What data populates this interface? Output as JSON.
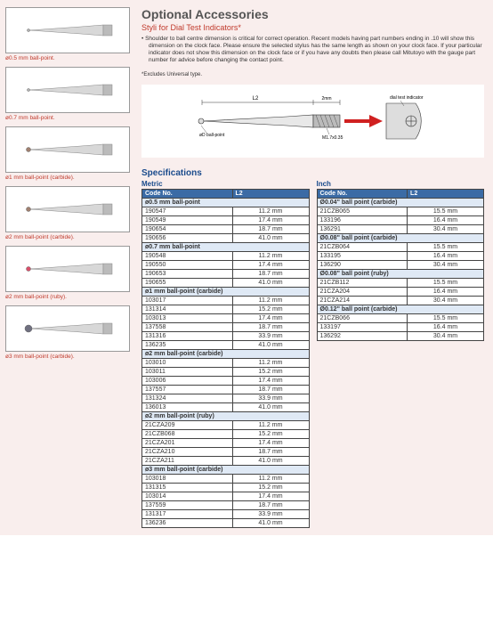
{
  "header": {
    "title": "Optional Accessories",
    "subtitle": "Styli for Dial Test Indicators*",
    "note": "Shoulder to ball centre dimension is critical for correct operation. Recent models having part numbers ending in .10 will show this dimension on the clock face. Please ensure the selected stylus has the same length as shown on your clock face. If your particular indicator does not show this dimension on the clock face or if you have any doubts then please call Mitutoyo with the gauge part number for advice before changing the contact point.",
    "footnote": "*Excludes Universal type."
  },
  "diagram": {
    "labels": {
      "l2": "L2",
      "ball": "øD ball-point",
      "thread": "M1.7x0.35",
      "right": "dial test indicator"
    }
  },
  "thumbnails": [
    {
      "caption": "ø0.5 mm ball-point.",
      "color": "#b0b0b0",
      "tip": "small"
    },
    {
      "caption": "ø0.7 mm ball-point.",
      "color": "#b0b0b0",
      "tip": "small"
    },
    {
      "caption": "ø1 mm ball-point (carbide).",
      "color": "#a08070",
      "tip": "med"
    },
    {
      "caption": "ø2 mm ball-point (carbide).",
      "color": "#a08070",
      "tip": "med"
    },
    {
      "caption": "ø2 mm ball-point (ruby).",
      "color": "#d94f6a",
      "tip": "med"
    },
    {
      "caption": "ø3 mm ball-point (carbide).",
      "color": "#707080",
      "tip": "large"
    }
  ],
  "specs": {
    "title": "Specifications",
    "head_code": "Code No.",
    "head_l2": "L2",
    "metric": {
      "title": "Metric",
      "sections": [
        {
          "title": "ø0.5 mm ball-point",
          "rows": [
            {
              "code": "190547",
              "l2": "11.2 mm"
            },
            {
              "code": "190549",
              "l2": "17.4 mm"
            },
            {
              "code": "190654",
              "l2": "18.7 mm"
            },
            {
              "code": "190656",
              "l2": "41.0 mm"
            }
          ]
        },
        {
          "title": "ø0.7 mm ball-point",
          "rows": [
            {
              "code": "190548",
              "l2": "11.2 mm"
            },
            {
              "code": "190550",
              "l2": "17.4 mm"
            },
            {
              "code": "190653",
              "l2": "18.7 mm"
            },
            {
              "code": "190655",
              "l2": "41.0 mm"
            }
          ]
        },
        {
          "title": "ø1 mm ball-point (carbide)",
          "rows": [
            {
              "code": "103017",
              "l2": "11.2 mm"
            },
            {
              "code": "131314",
              "l2": "15.2 mm"
            },
            {
              "code": "103013",
              "l2": "17.4 mm"
            },
            {
              "code": "137558",
              "l2": "18.7 mm"
            },
            {
              "code": "131316",
              "l2": "33.9 mm"
            },
            {
              "code": "136235",
              "l2": "41.0 mm"
            }
          ]
        },
        {
          "title": "ø2 mm ball-point (carbide)",
          "rows": [
            {
              "code": "103010",
              "l2": "11.2 mm"
            },
            {
              "code": "103011",
              "l2": "15.2 mm"
            },
            {
              "code": "103006",
              "l2": "17.4 mm"
            },
            {
              "code": "137557",
              "l2": "18.7 mm"
            },
            {
              "code": "131324",
              "l2": "33.9 mm"
            },
            {
              "code": "136013",
              "l2": "41.0 mm"
            }
          ]
        },
        {
          "title": "ø2 mm ball-point (ruby)",
          "rows": [
            {
              "code": "21CZA209",
              "l2": "11.2 mm"
            },
            {
              "code": "21CZB068",
              "l2": "15.2 mm"
            },
            {
              "code": "21CZA201",
              "l2": "17.4 mm"
            },
            {
              "code": "21CZA210",
              "l2": "18.7 mm"
            },
            {
              "code": "21CZA211",
              "l2": "41.0 mm"
            }
          ]
        },
        {
          "title": "ø3 mm ball-point (carbide)",
          "rows": [
            {
              "code": "103018",
              "l2": "11.2 mm"
            },
            {
              "code": "131315",
              "l2": "15.2 mm"
            },
            {
              "code": "103014",
              "l2": "17.4 mm"
            },
            {
              "code": "137559",
              "l2": "18.7 mm"
            },
            {
              "code": "131317",
              "l2": "33.9 mm"
            },
            {
              "code": "136236",
              "l2": "41.0 mm"
            }
          ]
        }
      ]
    },
    "inch": {
      "title": "Inch",
      "sections": [
        {
          "title": "Ø0.04\" ball point (carbide)",
          "rows": [
            {
              "code": "21CZB065",
              "l2": "15.5 mm"
            },
            {
              "code": "133196",
              "l2": "16.4 mm"
            },
            {
              "code": "136291",
              "l2": "30.4 mm"
            }
          ]
        },
        {
          "title": "Ø0.08\" ball point (carbide)",
          "rows": [
            {
              "code": "21CZB064",
              "l2": "15.5 mm"
            },
            {
              "code": "133195",
              "l2": "16.4 mm"
            },
            {
              "code": "136290",
              "l2": "30.4 mm"
            }
          ]
        },
        {
          "title": "Ø0.08\" ball point (ruby)",
          "rows": [
            {
              "code": "21CZB112",
              "l2": "15.5 mm"
            },
            {
              "code": "21CZA204",
              "l2": "16.4 mm"
            },
            {
              "code": "21CZA214",
              "l2": "30.4 mm"
            }
          ]
        },
        {
          "title": "Ø0.12\" ball point (carbide)",
          "rows": [
            {
              "code": "21CZB066",
              "l2": "15.5 mm"
            },
            {
              "code": "133197",
              "l2": "16.4 mm"
            },
            {
              "code": "136292",
              "l2": "30.4 mm"
            }
          ]
        }
      ]
    }
  }
}
